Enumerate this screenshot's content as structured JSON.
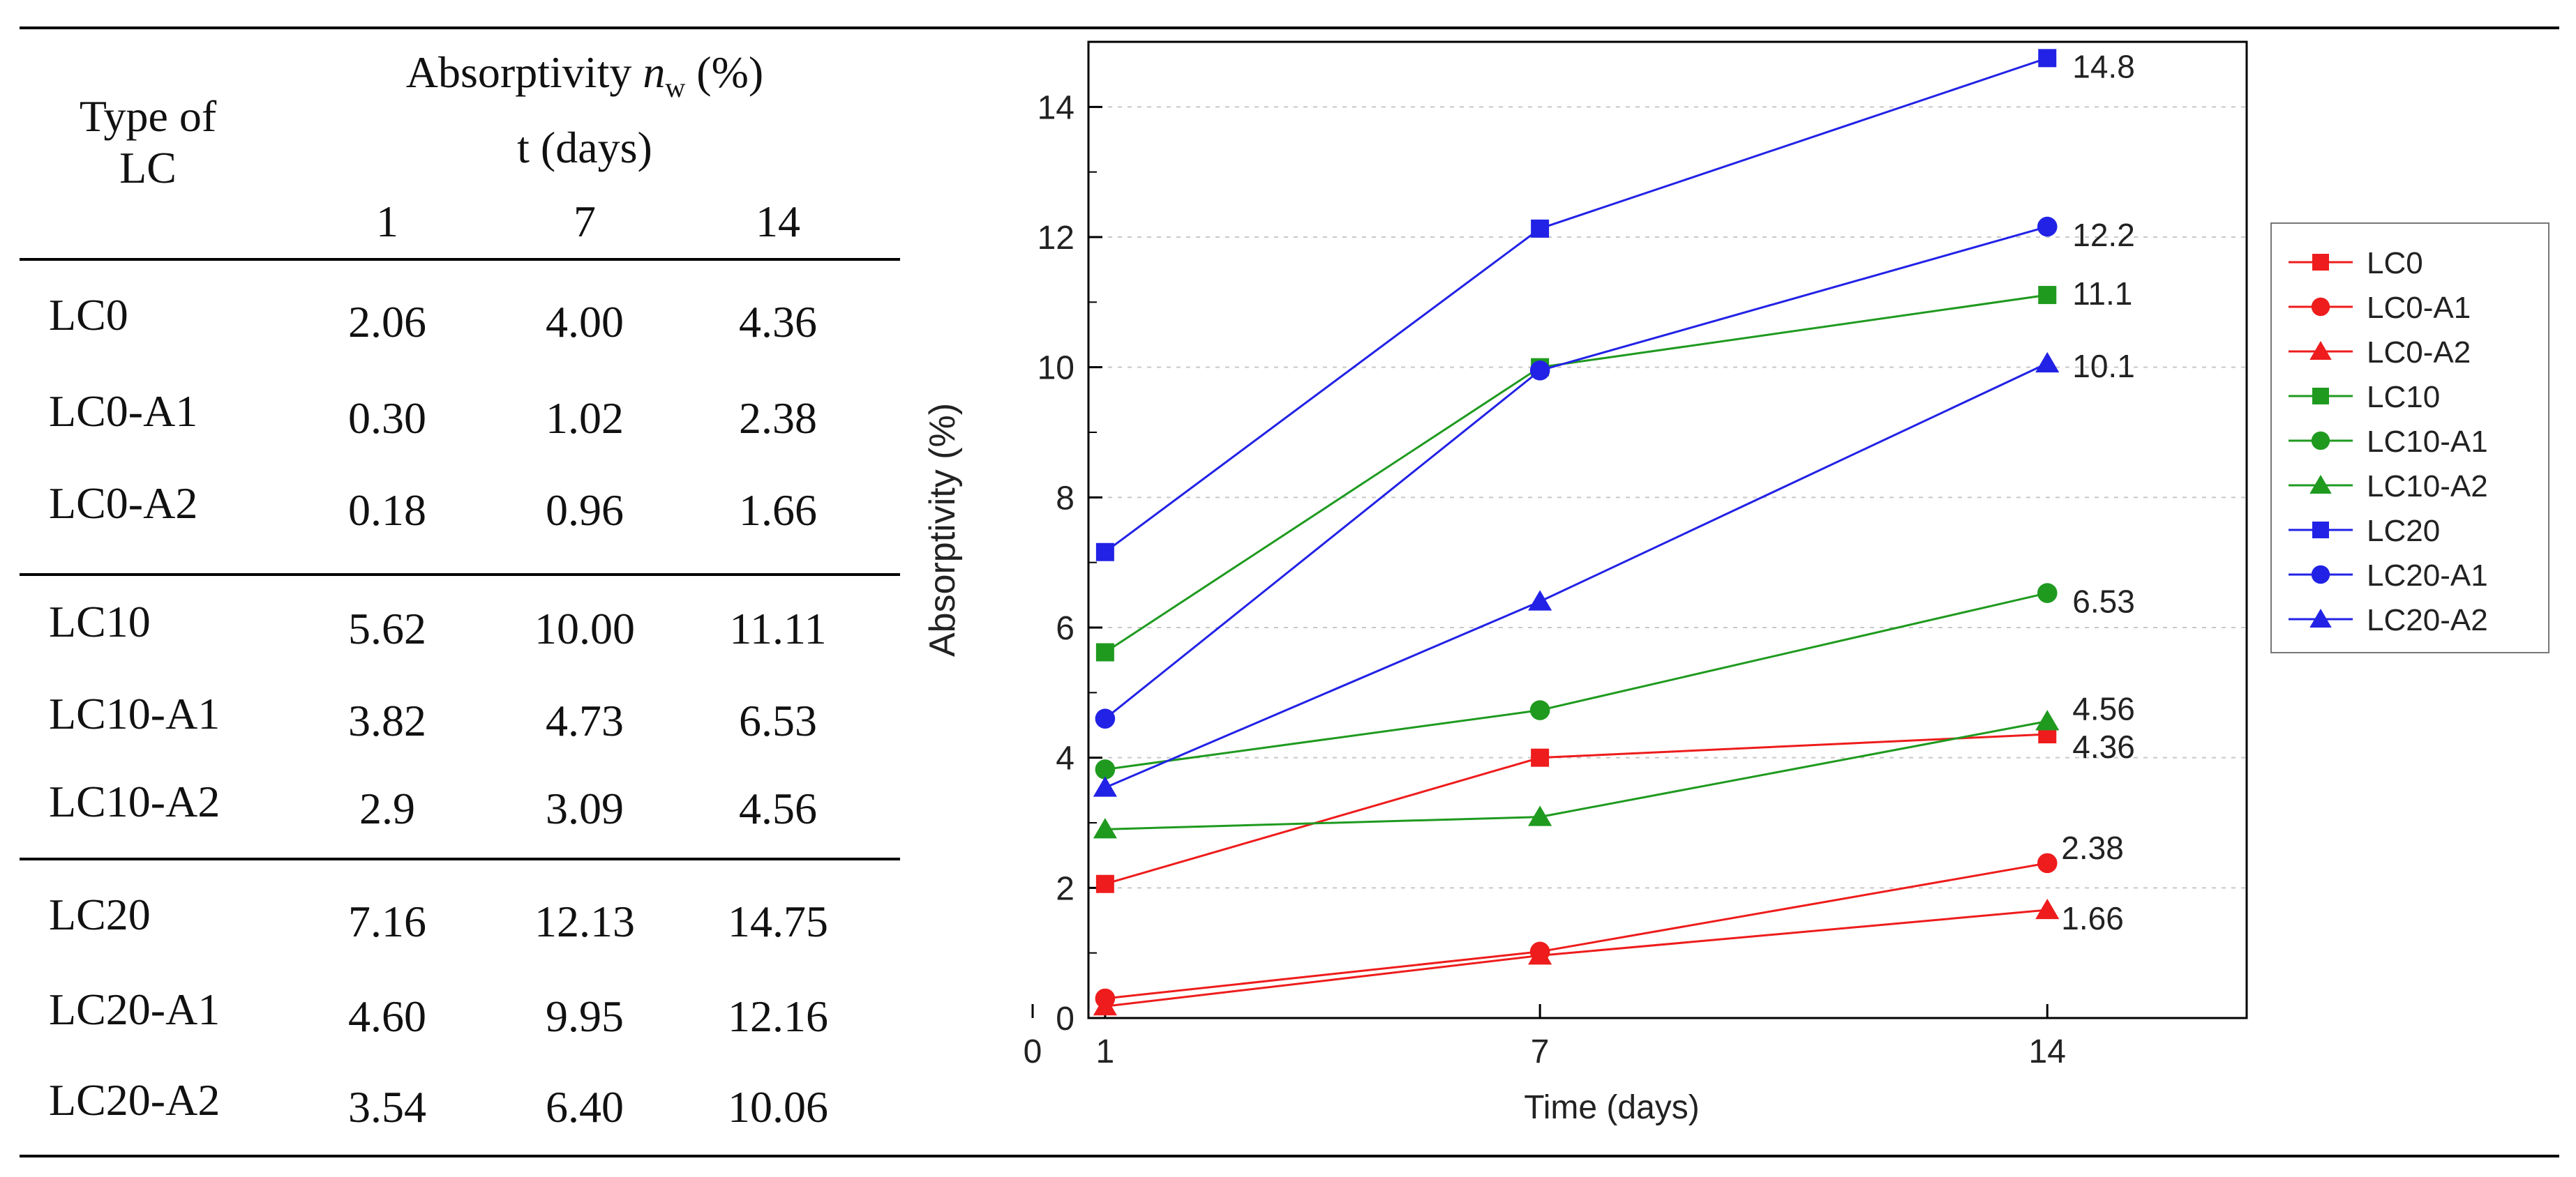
{
  "table": {
    "header": {
      "type_label_line1": "Type of",
      "type_label_line2": "LC",
      "absorptivity_prefix": "Absorptivity ",
      "absorptivity_symbol": "n",
      "absorptivity_subscript": "w",
      "absorptivity_suffix": " (%)",
      "time_label": "t (days)",
      "day_columns": [
        "1",
        "7",
        "14"
      ]
    },
    "rows": [
      {
        "type": "LC0",
        "v1": "2.06",
        "v7": "4.00",
        "v14": "4.36"
      },
      {
        "type": "LC0-A1",
        "v1": "0.30",
        "v7": "1.02",
        "v14": "2.38"
      },
      {
        "type": "LC0-A2",
        "v1": "0.18",
        "v7": "0.96",
        "v14": "1.66"
      },
      {
        "type": "LC10",
        "v1": "5.62",
        "v7": "10.00",
        "v14": "11.11"
      },
      {
        "type": "LC10-A1",
        "v1": "3.82",
        "v7": "4.73",
        "v14": "6.53"
      },
      {
        "type": "LC10-A2",
        "v1": "2.9",
        "v7": "3.09",
        "v14": "4.56"
      },
      {
        "type": "LC20",
        "v1": "7.16",
        "v7": "12.13",
        "v14": "14.75"
      },
      {
        "type": "LC20-A1",
        "v1": "4.60",
        "v7": "9.95",
        "v14": "12.16"
      },
      {
        "type": "LC20-A2",
        "v1": "3.54",
        "v7": "6.40",
        "v14": "10.06"
      }
    ]
  },
  "chart_data": {
    "type": "line",
    "xlabel": "Time (days)",
    "ylabel": "Absorptivity (%)",
    "xlim": [
      0,
      16
    ],
    "ylim": [
      0,
      15
    ],
    "x_ticks": [
      0,
      1,
      7,
      14
    ],
    "y_ticks": [
      0,
      2,
      4,
      6,
      8,
      10,
      12,
      14
    ],
    "grid": "horizontal dotted",
    "legend_position": "right",
    "x": [
      1,
      7,
      14
    ],
    "series": [
      {
        "name": "LC0",
        "color": "#ee1c1c",
        "marker": "square",
        "values": [
          2.06,
          4.0,
          4.36
        ]
      },
      {
        "name": "LC0-A1",
        "color": "#ee1c1c",
        "marker": "circle",
        "values": [
          0.3,
          1.02,
          2.38
        ]
      },
      {
        "name": "LC0-A2",
        "color": "#ee1c1c",
        "marker": "triangle",
        "values": [
          0.18,
          0.96,
          1.66
        ]
      },
      {
        "name": "LC10",
        "color": "#1f9a1f",
        "marker": "square",
        "values": [
          5.62,
          10.0,
          11.11
        ]
      },
      {
        "name": "LC10-A1",
        "color": "#1f9a1f",
        "marker": "circle",
        "values": [
          3.82,
          4.73,
          6.53
        ]
      },
      {
        "name": "LC10-A2",
        "color": "#1f9a1f",
        "marker": "triangle",
        "values": [
          2.9,
          3.09,
          4.56
        ]
      },
      {
        "name": "LC20",
        "color": "#2222e6",
        "marker": "square",
        "values": [
          7.16,
          12.13,
          14.75
        ]
      },
      {
        "name": "LC20-A1",
        "color": "#2222e6",
        "marker": "circle",
        "values": [
          4.6,
          9.95,
          12.16
        ]
      },
      {
        "name": "LC20-A2",
        "color": "#2222e6",
        "marker": "triangle",
        "values": [
          3.54,
          6.4,
          10.06
        ]
      }
    ],
    "end_labels": [
      {
        "series": "LC20",
        "text": "14.8"
      },
      {
        "series": "LC20-A1",
        "text": "12.2"
      },
      {
        "series": "LC10",
        "text": "11.1"
      },
      {
        "series": "LC20-A2",
        "text": "10.1"
      },
      {
        "series": "LC10-A1",
        "text": "6.53"
      },
      {
        "series": "LC10-A2",
        "text": "4.56"
      },
      {
        "series": "LC0",
        "text": "4.36"
      },
      {
        "series": "LC0-A1",
        "text": "2.38"
      },
      {
        "series": "LC0-A2",
        "text": "1.66"
      }
    ]
  }
}
